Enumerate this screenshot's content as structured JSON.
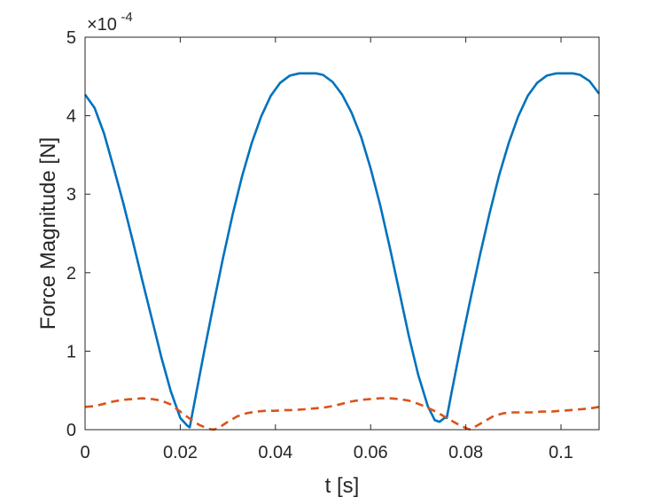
{
  "chart_data": {
    "type": "line",
    "title": "",
    "xlabel": "t [s]",
    "ylabel": "Force Magnitude [N]",
    "y_scale_multiplier": {
      "base": "×10",
      "exponent": "-4"
    },
    "xlim": [
      0,
      0.108
    ],
    "ylim": [
      0,
      5
    ],
    "xticks": [
      0,
      0.02,
      0.04,
      0.06,
      0.08,
      0.1
    ],
    "xtick_labels": [
      "0",
      "0.02",
      "0.04",
      "0.06",
      "0.08",
      "0.1"
    ],
    "yticks": [
      0,
      1,
      2,
      3,
      4,
      5
    ],
    "ytick_labels": [
      "0",
      "1",
      "2",
      "3",
      "4",
      "5"
    ],
    "grid": false,
    "legend": "none",
    "series": [
      {
        "color": "#0072BD",
        "style": "solid",
        "x": [
          0,
          0.002,
          0.004,
          0.006,
          0.008,
          0.01,
          0.012,
          0.014,
          0.016,
          0.018,
          0.02,
          0.0215,
          0.022,
          0.023,
          0.025,
          0.027,
          0.029,
          0.031,
          0.033,
          0.035,
          0.037,
          0.039,
          0.041,
          0.043,
          0.045,
          0.047,
          0.0485,
          0.05,
          0.052,
          0.054,
          0.056,
          0.058,
          0.06,
          0.062,
          0.064,
          0.066,
          0.068,
          0.07,
          0.072,
          0.0735,
          0.0745,
          0.0755,
          0.076,
          0.077,
          0.079,
          0.081,
          0.083,
          0.085,
          0.087,
          0.089,
          0.091,
          0.093,
          0.095,
          0.097,
          0.099,
          0.101,
          0.1025,
          0.104,
          0.106,
          0.108
        ],
        "y": [
          4.27,
          4.1,
          3.77,
          3.34,
          2.89,
          2.41,
          1.91,
          1.42,
          0.93,
          0.49,
          0.15,
          0.05,
          0.03,
          0.35,
          0.99,
          1.6,
          2.19,
          2.74,
          3.23,
          3.65,
          3.99,
          4.25,
          4.42,
          4.51,
          4.54,
          4.54,
          4.54,
          4.52,
          4.43,
          4.27,
          4.04,
          3.73,
          3.33,
          2.86,
          2.33,
          1.77,
          1.2,
          0.7,
          0.3,
          0.12,
          0.1,
          0.15,
          0.15,
          0.47,
          1.09,
          1.67,
          2.23,
          2.76,
          3.24,
          3.65,
          3.99,
          4.25,
          4.42,
          4.51,
          4.54,
          4.54,
          4.54,
          4.52,
          4.44,
          4.28
        ]
      },
      {
        "color": "#D95319",
        "style": "dashed",
        "x": [
          0,
          0.002,
          0.004,
          0.006,
          0.008,
          0.01,
          0.012,
          0.014,
          0.016,
          0.018,
          0.02,
          0.022,
          0.024,
          0.026,
          0.027,
          0.028,
          0.03,
          0.032,
          0.034,
          0.036,
          0.038,
          0.04,
          0.042,
          0.044,
          0.046,
          0.048,
          0.05,
          0.052,
          0.054,
          0.056,
          0.058,
          0.06,
          0.062,
          0.064,
          0.066,
          0.068,
          0.07,
          0.072,
          0.074,
          0.076,
          0.078,
          0.08,
          0.081,
          0.082,
          0.084,
          0.086,
          0.088,
          0.09,
          0.092,
          0.094,
          0.096,
          0.098,
          0.1,
          0.102,
          0.104,
          0.106,
          0.108
        ],
        "y": [
          0.29,
          0.3,
          0.33,
          0.36,
          0.38,
          0.39,
          0.4,
          0.39,
          0.37,
          0.32,
          0.23,
          0.14,
          0.06,
          0.01,
          0.0,
          0.02,
          0.1,
          0.17,
          0.21,
          0.23,
          0.24,
          0.24,
          0.25,
          0.25,
          0.26,
          0.27,
          0.28,
          0.3,
          0.33,
          0.36,
          0.38,
          0.39,
          0.4,
          0.4,
          0.39,
          0.37,
          0.33,
          0.28,
          0.22,
          0.15,
          0.08,
          0.02,
          0.0,
          0.04,
          0.11,
          0.18,
          0.21,
          0.22,
          0.22,
          0.22,
          0.23,
          0.23,
          0.24,
          0.25,
          0.26,
          0.27,
          0.29
        ]
      }
    ]
  }
}
